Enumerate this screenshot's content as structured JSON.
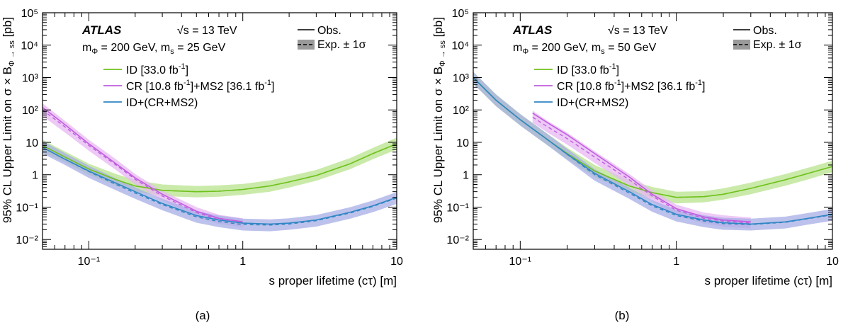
{
  "panels": [
    {
      "caption": "(a)",
      "experiment": "ATLAS",
      "energy": "√s = 13 TeV",
      "masses": "m",
      "masses_phi_sub": "Φ",
      "masses_mid": " = 200 GeV, m",
      "masses_s_sub": "s",
      "masses_end": " = 25 GeV",
      "obs_label": "Obs.",
      "exp_label": "Exp. ± 1σ",
      "xlabel": "s proper lifetime (cτ) [m]",
      "ylabel": "95% CL Upper Limit on σ × B",
      "ylabel_sub": "Φ → ss",
      "ylabel_unit": " [pb]"
    },
    {
      "caption": "(b)",
      "experiment": "ATLAS",
      "energy": "√s = 13 TeV",
      "masses": "m",
      "masses_phi_sub": "Φ",
      "masses_mid": " = 200 GeV, m",
      "masses_s_sub": "s",
      "masses_end": " = 50 GeV",
      "obs_label": "Obs.",
      "exp_label": "Exp. ± 1σ",
      "xlabel": "s proper lifetime (cτ) [m]",
      "ylabel": "95% CL Upper Limit on σ × B",
      "ylabel_sub": "Φ → ss",
      "ylabel_unit": " [pb]"
    }
  ],
  "legend_items": [
    {
      "label": "ID [33.0 fb",
      "sup": "-1",
      "end": "]",
      "color": "#6fc21d"
    },
    {
      "label": "CR [10.8 fb",
      "sup": "-1",
      "end": "]+MS2 [36.1 fb",
      "sup2": "-1",
      "end2": "]",
      "color": "#c05ce0"
    },
    {
      "label": "ID+(CR+MS2)",
      "color": "#2f86c4"
    }
  ],
  "chart_data": [
    {
      "type": "line",
      "xscale": "log",
      "yscale": "log",
      "xlim": [
        0.05,
        10
      ],
      "ylim": [
        0.005,
        100000
      ],
      "x_tick_labels": [
        "10⁻¹",
        "1",
        "10"
      ],
      "y_tick_labels": [
        "10⁻²",
        "10⁻¹",
        "1",
        "10",
        "10²",
        "10³",
        "10⁴",
        "10⁵"
      ],
      "series": [
        {
          "name": "ID [33.0 fb-1]",
          "color": "#6fc21d",
          "band_color": "#b8e38e",
          "x": [
            0.05,
            0.07,
            0.1,
            0.15,
            0.2,
            0.3,
            0.5,
            0.7,
            1,
            1.5,
            2,
            3,
            5,
            7,
            10
          ],
          "obs": [
            8,
            3.5,
            1.5,
            0.7,
            0.45,
            0.33,
            0.3,
            0.31,
            0.35,
            0.45,
            0.6,
            0.95,
            2.2,
            4.5,
            9
          ],
          "exp": [
            8,
            3.5,
            1.5,
            0.7,
            0.45,
            0.33,
            0.3,
            0.31,
            0.35,
            0.45,
            0.6,
            0.95,
            2.2,
            4.5,
            9
          ],
          "band_lo": [
            5,
            2.4,
            1.0,
            0.47,
            0.3,
            0.22,
            0.2,
            0.21,
            0.24,
            0.3,
            0.4,
            0.65,
            1.5,
            3,
            6
          ],
          "band_hi": [
            12,
            5.2,
            2.2,
            1.05,
            0.68,
            0.5,
            0.45,
            0.47,
            0.52,
            0.67,
            0.9,
            1.4,
            3.3,
            6.7,
            14
          ]
        },
        {
          "name": "CR [10.8 fb-1]+MS2 [36.1 fb-1]",
          "color": "#c05ce0",
          "band_color": "#e7b7f3",
          "x": [
            0.05,
            0.07,
            0.1,
            0.15,
            0.2,
            0.3,
            0.5,
            0.7,
            1
          ],
          "obs": [
            120,
            35,
            9,
            2.2,
            0.8,
            0.25,
            0.075,
            0.045,
            0.035
          ],
          "exp": [
            100,
            30,
            8,
            2.0,
            0.72,
            0.22,
            0.068,
            0.041,
            0.032
          ],
          "band_lo": [
            65,
            20,
            5.5,
            1.4,
            0.5,
            0.16,
            0.05,
            0.03,
            0.024
          ],
          "band_hi": [
            160,
            46,
            12,
            3.0,
            1.05,
            0.32,
            0.1,
            0.058,
            0.045
          ]
        },
        {
          "name": "ID+(CR+MS2)",
          "color": "#2f86c4",
          "band_color": "#a7aee6",
          "x": [
            0.05,
            0.07,
            0.1,
            0.15,
            0.2,
            0.3,
            0.5,
            0.7,
            1,
            1.5,
            2,
            3,
            5,
            7,
            10
          ],
          "obs": [
            7,
            3.0,
            1.3,
            0.55,
            0.3,
            0.13,
            0.055,
            0.04,
            0.032,
            0.03,
            0.032,
            0.04,
            0.07,
            0.11,
            0.2
          ],
          "exp": [
            7,
            3.0,
            1.25,
            0.5,
            0.27,
            0.12,
            0.05,
            0.036,
            0.029,
            0.028,
            0.03,
            0.038,
            0.066,
            0.105,
            0.19
          ],
          "band_lo": [
            4.5,
            2.0,
            0.8,
            0.33,
            0.18,
            0.08,
            0.033,
            0.024,
            0.019,
            0.018,
            0.02,
            0.025,
            0.044,
            0.07,
            0.125
          ],
          "band_hi": [
            11,
            4.6,
            1.9,
            0.77,
            0.41,
            0.18,
            0.075,
            0.055,
            0.044,
            0.042,
            0.045,
            0.057,
            0.1,
            0.16,
            0.29
          ]
        }
      ]
    },
    {
      "type": "line",
      "xscale": "log",
      "yscale": "log",
      "xlim": [
        0.05,
        10
      ],
      "ylim": [
        0.005,
        100000
      ],
      "x_tick_labels": [
        "10⁻¹",
        "1",
        "10"
      ],
      "y_tick_labels": [
        "10⁻²",
        "10⁻¹",
        "1",
        "10",
        "10²",
        "10³",
        "10⁴",
        "10⁵"
      ],
      "series": [
        {
          "name": "ID [33.0 fb-1]",
          "color": "#6fc21d",
          "band_color": "#b8e38e",
          "x": [
            0.05,
            0.07,
            0.1,
            0.15,
            0.2,
            0.3,
            0.5,
            0.7,
            1,
            1.5,
            2,
            3,
            5,
            7,
            10
          ],
          "obs": [
            1000,
            200,
            50,
            12,
            4.5,
            1.3,
            0.45,
            0.28,
            0.2,
            0.21,
            0.25,
            0.38,
            0.7,
            1.1,
            1.8
          ],
          "exp": [
            1000,
            200,
            50,
            12,
            4.5,
            1.3,
            0.45,
            0.28,
            0.2,
            0.21,
            0.25,
            0.38,
            0.7,
            1.1,
            1.8
          ],
          "band_lo": [
            650,
            130,
            33,
            8,
            3,
            0.85,
            0.3,
            0.19,
            0.13,
            0.14,
            0.17,
            0.25,
            0.46,
            0.72,
            1.2
          ],
          "band_hi": [
            1500,
            300,
            75,
            18,
            6.8,
            2.0,
            0.68,
            0.42,
            0.3,
            0.31,
            0.38,
            0.57,
            1.05,
            1.65,
            2.7
          ]
        },
        {
          "name": "CR [10.8 fb-1]+MS2 [36.1 fb-1]",
          "color": "#c05ce0",
          "band_color": "#e7b7f3",
          "x": [
            0.12,
            0.15,
            0.2,
            0.3,
            0.5,
            0.7,
            1,
            1.5,
            2,
            3
          ],
          "obs": [
            80,
            40,
            17,
            4.5,
            0.85,
            0.25,
            0.09,
            0.05,
            0.04,
            0.035
          ],
          "exp": [
            60,
            30,
            13,
            3.5,
            0.7,
            0.22,
            0.08,
            0.045,
            0.037,
            0.032
          ],
          "band_lo": [
            40,
            20,
            8.5,
            2.3,
            0.46,
            0.15,
            0.055,
            0.031,
            0.025,
            0.022
          ],
          "band_hi": [
            95,
            46,
            20,
            5.3,
            1.05,
            0.33,
            0.12,
            0.068,
            0.056,
            0.048
          ]
        },
        {
          "name": "ID+(CR+MS2)",
          "color": "#2f86c4",
          "band_color": "#a7aee6",
          "x": [
            0.05,
            0.07,
            0.1,
            0.15,
            0.2,
            0.3,
            0.5,
            0.7,
            1,
            1.5,
            2,
            3,
            5,
            7,
            10
          ],
          "obs": [
            1000,
            200,
            50,
            12,
            4.3,
            1.1,
            0.3,
            0.12,
            0.06,
            0.04,
            0.033,
            0.03,
            0.035,
            0.045,
            0.06
          ],
          "exp": [
            1000,
            200,
            50,
            12,
            4.2,
            1.0,
            0.27,
            0.11,
            0.055,
            0.037,
            0.031,
            0.029,
            0.034,
            0.044,
            0.058
          ],
          "band_lo": [
            650,
            130,
            33,
            8,
            2.8,
            0.65,
            0.18,
            0.072,
            0.036,
            0.024,
            0.02,
            0.019,
            0.022,
            0.029,
            0.038
          ],
          "band_hi": [
            1500,
            300,
            75,
            18,
            6.3,
            1.5,
            0.4,
            0.165,
            0.083,
            0.056,
            0.047,
            0.044,
            0.051,
            0.066,
            0.088
          ]
        }
      ]
    }
  ]
}
